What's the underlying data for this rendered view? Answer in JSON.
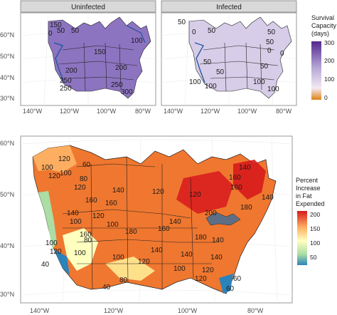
{
  "top": {
    "panels": [
      {
        "title": "Uninfected",
        "contours": [
          "150",
          "0",
          "50",
          "50",
          "150",
          "200",
          "200",
          "250",
          "250",
          "250",
          "300",
          "100"
        ]
      },
      {
        "title": "Infected",
        "contours": [
          "50",
          "0",
          "50",
          "50",
          "0",
          "50",
          "0",
          "50",
          "50",
          "100",
          "100",
          "100",
          "100",
          "50"
        ]
      }
    ],
    "x_ticks": [
      "140°W",
      "120°W",
      "100°W",
      "80°W"
    ],
    "y_ticks": [
      "60°N",
      "50°N",
      "40°N",
      "30°N"
    ],
    "legend": {
      "title_lines": [
        "Survival",
        "Capacity",
        "(days)"
      ],
      "ticks": [
        "300",
        "200",
        "100",
        "0"
      ],
      "colors": {
        "high": "#54278f",
        "mid": "#b6a7d6",
        "low_mid": "#f3eaf5",
        "low": "#e08214"
      }
    }
  },
  "bottom": {
    "contours": [
      "120",
      "60",
      "100",
      "100",
      "120",
      "80",
      "120",
      "140",
      "120",
      "160",
      "160",
      "120",
      "140",
      "100",
      "100",
      "160",
      "80",
      "140",
      "160",
      "180",
      "120",
      "200",
      "100",
      "160",
      "180",
      "180",
      "160",
      "140",
      "140",
      "40",
      "140",
      "100",
      "120",
      "140",
      "100",
      "120",
      "80",
      "40",
      "60",
      "60",
      "120",
      "100",
      "140",
      "140",
      "120"
    ],
    "x_ticks": [
      "140°W",
      "120°W",
      "100°W",
      "80°W"
    ],
    "y_ticks": [
      "60°N",
      "50°N",
      "40°N",
      "30°N"
    ],
    "legend": {
      "title_lines": [
        "Percent",
        "Increase",
        "in Fat",
        "Expended"
      ],
      "ticks": [
        "200",
        "150",
        "100",
        "50"
      ],
      "colors": {
        "high": "#d7191c",
        "mid_high": "#fdae61",
        "mid": "#ffffbf",
        "mid_low": "#abdda4",
        "low": "#2b83ba"
      }
    }
  }
}
